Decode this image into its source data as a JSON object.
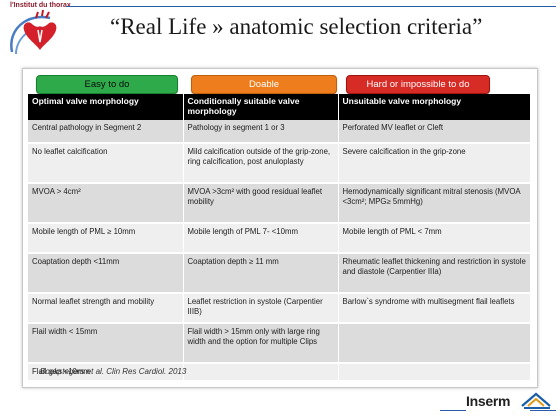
{
  "header": {
    "institute_label": "l'Institut du thorax",
    "title": "“Real Life » anatomic selection criteria”"
  },
  "categories": [
    {
      "label": "Easy to do",
      "color": "#2eaa4a"
    },
    {
      "label": "Doable",
      "color": "#ee7d1e"
    },
    {
      "label": "Hard or impossible  to do",
      "color": "#d72b26"
    }
  ],
  "table": {
    "headers": [
      "Optimal valve morphology",
      "Conditionally suitable valve morphology",
      "Unsuitable valve morphology"
    ],
    "rows": [
      [
        "Central pathology in Segment 2",
        "Pathology in segment 1 or 3",
        "Perforated MV leaflet or Cleft"
      ],
      [
        "No leaflet calcification",
        "Mild calcification outside of the grip-zone, ring calcification, post anuloplasty",
        "Severe calcification in the grip-zone"
      ],
      [
        "MVOA > 4cm²",
        "MVOA >3cm² with good residual leaflet mobility",
        "Hemodynamically significant mitral stenosis (MVOA <3cm²; MPG≥ 5mmHg)"
      ],
      [
        "Mobile length of PML ≥ 10mm",
        "Mobile length of PML 7- <10mm",
        "Mobile length of PML < 7mm"
      ],
      [
        "Coaptation depth <11mm",
        "Coaptation depth ≥ 11 mm",
        "Rheumatic leaflet thickening and restriction in systole and diastole (Carpentier IIIa)"
      ],
      [
        "Normal leaflet strength and mobility",
        "Leaflet restriction in systole (Carpentier IIIB)",
        "Barlow`s syndrome with multisegment flail leaflets"
      ],
      [
        "Flail width < 15mm",
        "Flail width > 15mm only with large ring width and the option for multiple Clips",
        ""
      ],
      [
        "Flail gap <10mm",
        "",
        ""
      ]
    ]
  },
  "citation": "Boekstegers et al. Clin Res Cardiol. 2013",
  "footer": {
    "brand": "Inserm"
  }
}
